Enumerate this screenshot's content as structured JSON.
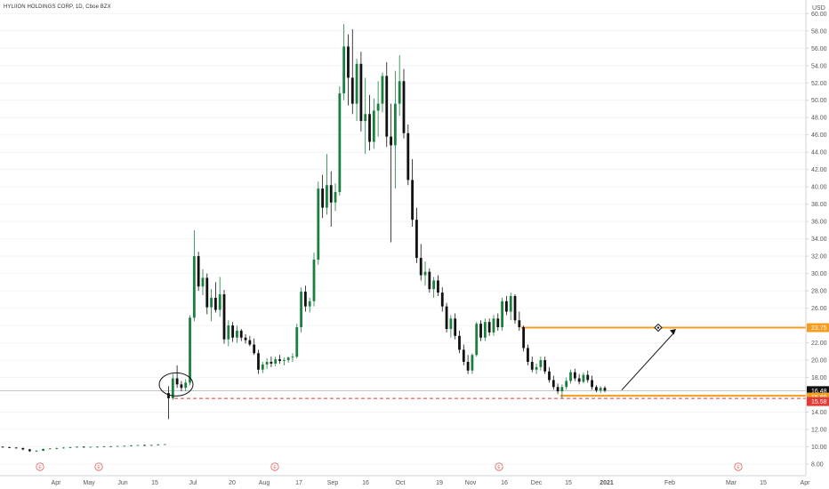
{
  "header": {
    "title": "HYLIION HOLDINGS CORP, 1D, Cboe BZX",
    "currency": "USD"
  },
  "colors": {
    "up": "#26a69a",
    "up_fill": "#1b7f3e",
    "down": "#111111",
    "orange": "#f59d20",
    "red": "#e53935",
    "last": "#111111",
    "arrow": "#111111"
  },
  "chart_data": {
    "type": "candlestick",
    "title": "HYLIION HOLDINGS CORP, 1D, Cboe BZX",
    "ylabel": "USD",
    "ylim": [
      7,
      61
    ],
    "y_ticks": [
      "8.00",
      "10.00",
      "12.00",
      "14.00",
      "16.00",
      "18.00",
      "20.00",
      "22.00",
      "24.00",
      "26.00",
      "28.00",
      "30.00",
      "32.00",
      "34.00",
      "36.00",
      "38.00",
      "40.00",
      "42.00",
      "44.00",
      "46.00",
      "48.00",
      "50.00",
      "52.00",
      "54.00",
      "56.00",
      "58.00",
      "60.00"
    ],
    "x_ticks": [
      "Apr",
      "May",
      "Jun",
      "15",
      "Jul",
      "20",
      "Aug",
      "17",
      "Sep",
      "16",
      "Oct",
      "19",
      "Nov",
      "16",
      "Dec",
      "15",
      "2021",
      "Feb",
      "Mar",
      "15",
      "Apr"
    ],
    "earnings_markers": [
      "E",
      "E",
      "E",
      "E",
      "E"
    ],
    "price_tags": [
      {
        "label": "23.75",
        "value": 23.75,
        "color": "#f59d20"
      },
      {
        "label": "16.48",
        "value": 16.48,
        "color": "#111111"
      },
      {
        "label": "15.89",
        "value": 15.89,
        "color": "#f59d20"
      },
      {
        "label": "15.58",
        "value": 15.58,
        "color": "#e53935"
      }
    ],
    "horizontal_lines": [
      {
        "value": 23.75,
        "style": "solid",
        "color": "#f59d20"
      },
      {
        "value": 15.89,
        "style": "solid",
        "color": "#f59d20"
      },
      {
        "value": 15.58,
        "style": "dashed",
        "color": "#e53935"
      },
      {
        "value": 16.48,
        "style": "solid-thin",
        "color": "#999999"
      }
    ],
    "annotations": [
      "circle around breakout candles near 17",
      "arrow from 16.5 up to 23.75 target"
    ],
    "candles": [
      [
        10.0,
        10.05,
        9.9,
        9.95
      ],
      [
        9.95,
        10.0,
        9.85,
        9.9
      ],
      [
        9.9,
        9.95,
        9.8,
        9.85
      ],
      [
        9.85,
        9.9,
        9.6,
        9.7
      ],
      [
        9.7,
        9.75,
        9.4,
        9.5
      ],
      [
        9.5,
        9.6,
        9.4,
        9.55
      ],
      [
        9.55,
        9.8,
        9.5,
        9.75
      ],
      [
        9.75,
        9.85,
        9.7,
        9.8
      ],
      [
        9.8,
        9.9,
        9.7,
        9.85
      ],
      [
        9.85,
        9.95,
        9.8,
        9.9
      ],
      [
        9.9,
        10.0,
        9.85,
        9.95
      ],
      [
        9.95,
        10.05,
        9.9,
        10.0
      ],
      [
        10.0,
        10.05,
        9.9,
        9.95
      ],
      [
        9.95,
        10.0,
        9.9,
        10.0
      ],
      [
        10.0,
        10.05,
        9.95,
        10.0
      ],
      [
        10.0,
        10.1,
        9.95,
        10.05
      ],
      [
        10.05,
        10.1,
        10.0,
        10.05
      ],
      [
        10.05,
        10.1,
        10.0,
        10.1
      ],
      [
        10.1,
        10.15,
        10.05,
        10.1
      ],
      [
        10.1,
        10.2,
        10.05,
        10.15
      ],
      [
        10.15,
        10.2,
        10.1,
        10.2
      ],
      [
        10.2,
        10.25,
        10.1,
        10.15
      ],
      [
        10.15,
        10.25,
        10.1,
        10.2
      ],
      [
        10.2,
        10.3,
        10.15,
        10.25
      ],
      [
        10.25,
        10.3,
        10.2,
        10.3
      ],
      [
        16.2,
        17.0,
        13.2,
        15.6
      ],
      [
        15.6,
        18.4,
        15.4,
        17.9
      ],
      [
        17.9,
        19.4,
        16.8,
        17.2
      ],
      [
        17.2,
        17.6,
        16.4,
        16.8
      ],
      [
        16.8,
        17.8,
        16.4,
        17.4
      ],
      [
        17.4,
        25.2,
        17.1,
        24.9
      ],
      [
        24.9,
        35.0,
        24.5,
        32.0
      ],
      [
        32.0,
        32.5,
        28.0,
        28.5
      ],
      [
        28.5,
        30.5,
        27.5,
        29.5
      ],
      [
        29.5,
        30.0,
        25.3,
        26.1
      ],
      [
        26.1,
        28.2,
        24.5,
        27.2
      ],
      [
        27.2,
        29.0,
        25.5,
        25.8
      ],
      [
        25.8,
        29.6,
        25.0,
        27.6
      ],
      [
        27.6,
        28.1,
        21.9,
        22.4
      ],
      [
        22.4,
        24.6,
        21.6,
        24.0
      ],
      [
        24.0,
        24.4,
        22.1,
        22.6
      ],
      [
        22.6,
        24.0,
        22.0,
        23.4
      ],
      [
        23.4,
        23.6,
        22.2,
        22.6
      ],
      [
        22.6,
        23.0,
        21.9,
        22.3
      ],
      [
        22.3,
        22.8,
        21.6,
        21.8
      ],
      [
        21.8,
        22.5,
        20.6,
        20.8
      ],
      [
        20.8,
        21.2,
        18.4,
        18.9
      ],
      [
        18.9,
        19.8,
        18.5,
        19.5
      ],
      [
        19.5,
        20.2,
        19.0,
        19.8
      ],
      [
        19.8,
        20.4,
        19.2,
        19.6
      ],
      [
        19.6,
        20.4,
        19.3,
        20.1
      ],
      [
        20.1,
        20.6,
        19.6,
        19.9
      ],
      [
        19.9,
        20.3,
        19.4,
        20.0
      ],
      [
        20.0,
        20.4,
        19.7,
        20.3
      ],
      [
        20.3,
        20.8,
        19.8,
        20.4
      ],
      [
        20.4,
        24.2,
        20.2,
        23.8
      ],
      [
        23.8,
        28.4,
        23.2,
        27.9
      ],
      [
        27.9,
        28.6,
        25.6,
        26.2
      ],
      [
        26.2,
        27.2,
        25.5,
        26.8
      ],
      [
        26.8,
        32.4,
        26.2,
        31.6
      ],
      [
        31.6,
        40.6,
        31.0,
        39.8
      ],
      [
        39.8,
        41.4,
        36.4,
        37.6
      ],
      [
        37.6,
        43.8,
        36.8,
        40.2
      ],
      [
        40.2,
        41.8,
        35.4,
        38.2
      ],
      [
        38.2,
        40.4,
        37.2,
        39.4
      ],
      [
        39.4,
        51.6,
        39.0,
        50.8
      ],
      [
        50.8,
        58.8,
        50.0,
        56.2
      ],
      [
        56.2,
        57.6,
        49.4,
        52.6
      ],
      [
        52.6,
        58.2,
        48.4,
        49.6
      ],
      [
        49.6,
        54.8,
        47.6,
        54.2
      ],
      [
        54.2,
        55.6,
        46.4,
        47.6
      ],
      [
        47.6,
        52.6,
        43.8,
        48.4
      ],
      [
        48.4,
        50.6,
        44.2,
        45.2
      ],
      [
        45.2,
        50.2,
        44.4,
        48.8
      ],
      [
        48.8,
        52.2,
        45.8,
        49.6
      ],
      [
        49.6,
        53.2,
        48.6,
        52.8
      ],
      [
        52.8,
        54.4,
        44.6,
        45.8
      ],
      [
        45.8,
        49.6,
        33.6,
        44.8
      ],
      [
        44.8,
        53.4,
        39.8,
        49.6
      ],
      [
        49.6,
        55.2,
        48.2,
        52.2
      ],
      [
        52.2,
        53.6,
        45.6,
        46.2
      ],
      [
        46.2,
        47.2,
        40.2,
        40.8
      ],
      [
        40.8,
        43.2,
        35.4,
        36.2
      ],
      [
        36.2,
        37.6,
        31.2,
        31.8
      ],
      [
        31.8,
        33.4,
        29.2,
        29.8
      ],
      [
        29.8,
        31.4,
        28.6,
        30.2
      ],
      [
        30.2,
        30.6,
        27.8,
        28.2
      ],
      [
        28.2,
        29.6,
        27.2,
        29.2
      ],
      [
        29.2,
        29.8,
        27.4,
        27.8
      ],
      [
        27.8,
        28.4,
        25.6,
        26.2
      ],
      [
        26.2,
        26.6,
        23.2,
        23.6
      ],
      [
        23.6,
        25.2,
        22.6,
        24.8
      ],
      [
        24.8,
        25.4,
        22.4,
        22.8
      ],
      [
        22.8,
        23.4,
        20.8,
        21.2
      ],
      [
        21.2,
        21.8,
        19.4,
        19.8
      ],
      [
        19.8,
        20.6,
        18.4,
        18.8
      ],
      [
        18.8,
        20.8,
        18.4,
        20.6
      ],
      [
        20.6,
        24.4,
        20.4,
        24.2
      ],
      [
        24.2,
        24.6,
        22.2,
        22.6
      ],
      [
        22.6,
        24.8,
        22.2,
        24.4
      ],
      [
        24.4,
        24.8,
        22.8,
        23.2
      ],
      [
        23.2,
        25.2,
        22.8,
        24.8
      ],
      [
        24.8,
        25.4,
        23.4,
        23.8
      ],
      [
        23.8,
        27.2,
        23.4,
        26.8
      ],
      [
        26.8,
        27.4,
        25.2,
        25.6
      ],
      [
        25.6,
        27.8,
        24.6,
        27.4
      ],
      [
        27.4,
        27.6,
        24.2,
        24.6
      ],
      [
        24.6,
        25.6,
        23.4,
        23.8
      ],
      [
        23.8,
        24.0,
        21.0,
        21.4
      ],
      [
        21.4,
        21.8,
        19.4,
        19.8
      ],
      [
        19.8,
        20.4,
        18.6,
        18.9
      ],
      [
        18.9,
        19.6,
        18.4,
        19.2
      ],
      [
        19.2,
        20.4,
        18.8,
        20.0
      ],
      [
        20.0,
        20.4,
        18.4,
        18.7
      ],
      [
        18.7,
        19.2,
        17.4,
        17.7
      ],
      [
        17.7,
        18.2,
        16.6,
        16.9
      ],
      [
        16.9,
        17.3,
        16.1,
        16.4
      ],
      [
        16.4,
        17.2,
        15.6,
        16.9
      ],
      [
        16.9,
        18.0,
        16.6,
        17.6
      ],
      [
        17.6,
        18.9,
        17.3,
        18.6
      ],
      [
        18.6,
        19.0,
        17.6,
        17.9
      ],
      [
        17.9,
        18.4,
        17.2,
        17.5
      ],
      [
        17.5,
        18.6,
        17.3,
        18.3
      ],
      [
        18.3,
        18.8,
        17.4,
        17.7
      ],
      [
        17.7,
        18.2,
        16.6,
        16.9
      ],
      [
        16.9,
        17.1,
        16.3,
        16.5
      ],
      [
        16.5,
        17.0,
        16.2,
        16.8
      ],
      [
        16.8,
        17.0,
        16.3,
        16.48
      ]
    ]
  }
}
